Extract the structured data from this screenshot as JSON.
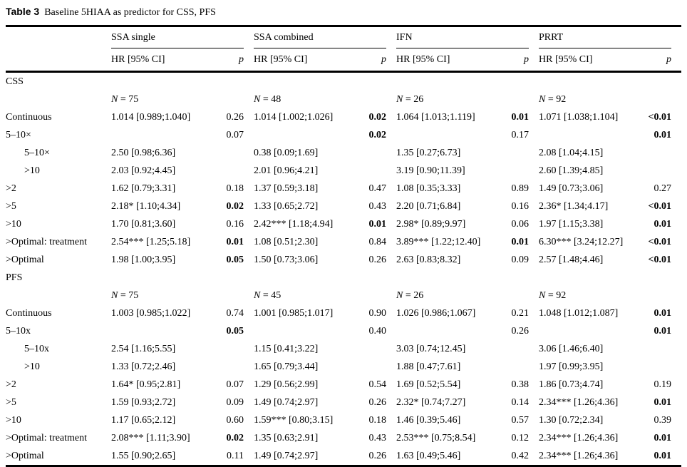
{
  "title": {
    "label": "Table 3",
    "caption": "Baseline 5HIAA as predictor for CSS, PFS"
  },
  "header": {
    "groups": [
      "SSA single",
      "SSA combined",
      "IFN",
      "PRRT"
    ],
    "hr_label": "HR [95% CI]",
    "p_label": "p"
  },
  "sections": [
    {
      "name": "CSS",
      "n_row": [
        "N = 75",
        "N = 48",
        "N = 26",
        "N = 92"
      ],
      "rows": [
        {
          "label": "Continuous",
          "indent": false,
          "cells": [
            {
              "hr": "1.014 [0.989;1.040]",
              "p": "0.26",
              "p_bold": false
            },
            {
              "hr": "1.014 [1.002;1.026]",
              "p": "0.02",
              "p_bold": true
            },
            {
              "hr": "1.064 [1.013;1.119]",
              "p": "0.01",
              "p_bold": true
            },
            {
              "hr": "1.071 [1.038;1.104]",
              "p": "<0.01",
              "p_bold": true
            }
          ]
        },
        {
          "label": "5–10×",
          "indent": false,
          "cells": [
            {
              "p": "0.07",
              "p_bold": false
            },
            {
              "p": "0.02",
              "p_bold": true
            },
            {
              "p": "0.17",
              "p_bold": false
            },
            {
              "p": "0.01",
              "p_bold": true
            }
          ]
        },
        {
          "label": "5–10×",
          "indent": true,
          "cells": [
            {
              "hr": "2.50 [0.98;6.36]"
            },
            {
              "hr": "0.38 [0.09;1.69]"
            },
            {
              "hr": "1.35 [0.27;6.73]"
            },
            {
              "hr": "2.08 [1.04;4.15]"
            }
          ]
        },
        {
          "label": ">10",
          "indent": true,
          "cells": [
            {
              "hr": "2.03 [0.92;4.45]"
            },
            {
              "hr": "2.01 [0.96;4.21]"
            },
            {
              "hr": "3.19 [0.90;11.39]"
            },
            {
              "hr": "2.60 [1.39;4.85]"
            }
          ]
        },
        {
          "label": ">2",
          "indent": false,
          "cells": [
            {
              "hr": "1.62 [0.79;3.31]",
              "p": "0.18",
              "p_bold": false
            },
            {
              "hr": "1.37 [0.59;3.18]",
              "p": "0.47",
              "p_bold": false
            },
            {
              "hr": "1.08 [0.35;3.33]",
              "p": "0.89",
              "p_bold": false
            },
            {
              "hr": "1.49 [0.73;3.06]",
              "p": "0.27",
              "p_bold": false
            }
          ]
        },
        {
          "label": ">5",
          "indent": false,
          "cells": [
            {
              "hr": "2.18* [1.10;4.34]",
              "p": "0.02",
              "p_bold": true
            },
            {
              "hr": "1.33 [0.65;2.72]",
              "p": "0.43",
              "p_bold": false
            },
            {
              "hr": "2.20 [0.71;6.84]",
              "p": "0.16",
              "p_bold": false
            },
            {
              "hr": "2.36* [1.34;4.17]",
              "p": "<0.01",
              "p_bold": true
            }
          ]
        },
        {
          "label": ">10",
          "indent": false,
          "cells": [
            {
              "hr": "1.70 [0.81;3.60]",
              "p": "0.16",
              "p_bold": false
            },
            {
              "hr": "2.42*** [1.18;4.94]",
              "p": "0.01",
              "p_bold": true
            },
            {
              "hr": "2.98* [0.89;9.97]",
              "p": "0.06",
              "p_bold": false
            },
            {
              "hr": "1.97 [1.15;3.38]",
              "p": "0.01",
              "p_bold": true
            }
          ]
        },
        {
          "label": ">Optimal: treatment",
          "indent": false,
          "cells": [
            {
              "hr": "2.54*** [1.25;5.18]",
              "p": "0.01",
              "p_bold": true
            },
            {
              "hr": "1.08 [0.51;2.30]",
              "p": "0.84",
              "p_bold": false
            },
            {
              "hr": "3.89*** [1.22;12.40]",
              "p": "0.01",
              "p_bold": true
            },
            {
              "hr": "6.30*** [3.24;12.27]",
              "p": "<0.01",
              "p_bold": true
            }
          ]
        },
        {
          "label": ">Optimal",
          "indent": false,
          "cells": [
            {
              "hr": "1.98 [1.00;3.95]",
              "p": "0.05",
              "p_bold": true
            },
            {
              "hr": "1.50 [0.73;3.06]",
              "p": "0.26",
              "p_bold": false
            },
            {
              "hr": "2.63 [0.83;8.32]",
              "p": "0.09",
              "p_bold": false
            },
            {
              "hr": "2.57 [1.48;4.46]",
              "p": "<0.01",
              "p_bold": true
            }
          ]
        }
      ]
    },
    {
      "name": "PFS",
      "n_row": [
        "N = 75",
        "N = 45",
        "N = 26",
        "N = 92"
      ],
      "rows": [
        {
          "label": "Continuous",
          "indent": false,
          "cells": [
            {
              "hr": "1.003 [0.985;1.022]",
              "p": "0.74",
              "p_bold": false
            },
            {
              "hr": "1.001 [0.985;1.017]",
              "p": "0.90",
              "p_bold": false
            },
            {
              "hr": "1.026 [0.986;1.067]",
              "p": "0.21",
              "p_bold": false
            },
            {
              "hr": "1.048 [1.012;1.087]",
              "p": "0.01",
              "p_bold": true
            }
          ]
        },
        {
          "label": "5–10x",
          "indent": false,
          "cells": [
            {
              "p": "0.05",
              "p_bold": true
            },
            {
              "p": "0.40",
              "p_bold": false
            },
            {
              "p": "0.26",
              "p_bold": false
            },
            {
              "p": "0.01",
              "p_bold": true
            }
          ]
        },
        {
          "label": "5–10x",
          "indent": true,
          "cells": [
            {
              "hr": "2.54 [1.16;5.55]"
            },
            {
              "hr": "1.15 [0.41;3.22]"
            },
            {
              "hr": "3.03 [0.74;12.45]"
            },
            {
              "hr": "3.06 [1.46;6.40]"
            }
          ]
        },
        {
          "label": ">10",
          "indent": true,
          "cells": [
            {
              "hr": "1.33 [0.72;2.46]"
            },
            {
              "hr": "1.65 [0.79;3.44]"
            },
            {
              "hr": "1.88 [0.47;7.61]"
            },
            {
              "hr": "1.97 [0.99;3.95]"
            }
          ]
        },
        {
          "label": ">2",
          "indent": false,
          "cells": [
            {
              "hr": "1.64* [0.95;2.81]",
              "p": "0.07",
              "p_bold": false
            },
            {
              "hr": "1.29 [0.56;2.99]",
              "p": "0.54",
              "p_bold": false
            },
            {
              "hr": "1.69 [0.52;5.54]",
              "p": "0.38",
              "p_bold": false
            },
            {
              "hr": "1.86 [0.73;4.74]",
              "p": "0.19",
              "p_bold": false
            }
          ]
        },
        {
          "label": ">5",
          "indent": false,
          "cells": [
            {
              "hr": "1.59 [0.93;2.72]",
              "p": "0.09",
              "p_bold": false
            },
            {
              "hr": "1.49 [0.74;2.97]",
              "p": "0.26",
              "p_bold": false
            },
            {
              "hr": "2.32* [0.74;7.27]",
              "p": "0.14",
              "p_bold": false
            },
            {
              "hr": "2.34*** [1.26;4.36]",
              "p": "0.01",
              "p_bold": true
            }
          ]
        },
        {
          "label": ">10",
          "indent": false,
          "cells": [
            {
              "hr": "1.17 [0.65;2.12]",
              "p": "0.60",
              "p_bold": false
            },
            {
              "hr": "1.59*** [0.80;3.15]",
              "p": "0.18",
              "p_bold": false
            },
            {
              "hr": "1.46 [0.39;5.46]",
              "p": "0.57",
              "p_bold": false
            },
            {
              "hr": "1.30 [0.72;2.34]",
              "p": "0.39",
              "p_bold": false
            }
          ]
        },
        {
          "label": ">Optimal: treatment",
          "indent": false,
          "cells": [
            {
              "hr": "2.08*** [1.11;3.90]",
              "p": "0.02",
              "p_bold": true
            },
            {
              "hr": "1.35 [0.63;2.91]",
              "p": "0.43",
              "p_bold": false
            },
            {
              "hr": "2.53*** [0.75;8.54]",
              "p": "0.12",
              "p_bold": false
            },
            {
              "hr": "2.34*** [1.26;4.36]",
              "p": "0.01",
              "p_bold": true
            }
          ]
        },
        {
          "label": ">Optimal",
          "indent": false,
          "cells": [
            {
              "hr": "1.55 [0.90;2.65]",
              "p": "0.11",
              "p_bold": false
            },
            {
              "hr": "1.49 [0.74;2.97]",
              "p": "0.26",
              "p_bold": false
            },
            {
              "hr": "1.63 [0.49;5.46]",
              "p": "0.42",
              "p_bold": false
            },
            {
              "hr": "2.34*** [1.26;4.36]",
              "p": "0.01",
              "p_bold": true
            }
          ]
        }
      ]
    }
  ]
}
